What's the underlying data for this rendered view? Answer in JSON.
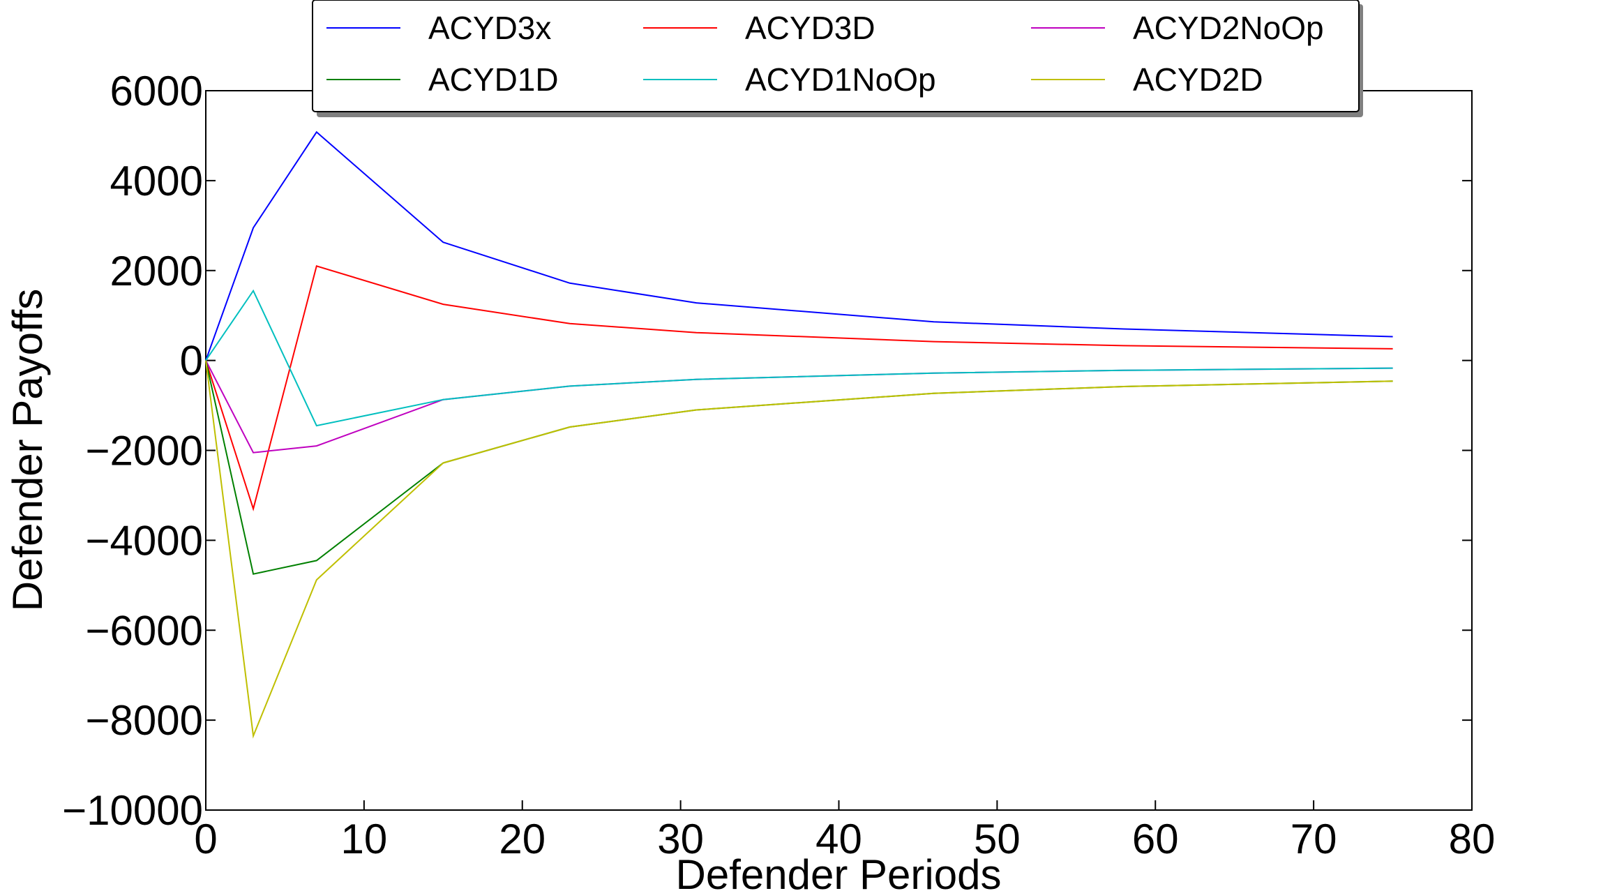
{
  "chart_data": {
    "type": "line",
    "title": "",
    "xlabel": "Defender Periods",
    "ylabel": "Defender Payoffs",
    "xlim": [
      0,
      80
    ],
    "ylim": [
      -10000,
      6000
    ],
    "xticks": [
      0,
      10,
      20,
      30,
      40,
      50,
      60,
      70,
      80
    ],
    "xtick_labels": [
      "0",
      "10",
      "20",
      "30",
      "40",
      "50",
      "60",
      "70",
      "80"
    ],
    "yticks": [
      6000,
      4000,
      2000,
      0,
      -2000,
      -4000,
      -6000,
      -8000,
      -10000
    ],
    "ytick_labels": [
      "6000",
      "4000",
      "2000",
      "0",
      "−2000",
      "−4000",
      "−6000",
      "−8000",
      "−10000"
    ],
    "grid": false,
    "legend_position": "top-center",
    "x": [
      0,
      3,
      7,
      15,
      23,
      31,
      46,
      58,
      75
    ],
    "series": [
      {
        "name": "ACYD3x",
        "color": "#0000ff",
        "values": [
          0,
          2950,
          5080,
          2630,
          1720,
          1280,
          860,
          700,
          530
        ]
      },
      {
        "name": "ACYD3D",
        "color": "#ff0000",
        "values": [
          0,
          -3300,
          2100,
          1250,
          820,
          620,
          420,
          330,
          260
        ]
      },
      {
        "name": "ACYD2NoOp",
        "color": "#bf00bf",
        "values": [
          0,
          -2050,
          -1900,
          -870,
          -570,
          -420,
          -280,
          -220,
          -170
        ]
      },
      {
        "name": "ACYD1D",
        "color": "#008000",
        "values": [
          0,
          -4750,
          -4450,
          -2280,
          -1480,
          -1100,
          -730,
          -580,
          -460
        ]
      },
      {
        "name": "ACYD1NoOp",
        "color": "#00bfbf",
        "values": [
          0,
          1550,
          -1450,
          -870,
          -570,
          -420,
          -280,
          -220,
          -170
        ]
      },
      {
        "name": "ACYD2D",
        "color": "#bfbf00",
        "values": [
          0,
          -8350,
          -4880,
          -2280,
          -1480,
          -1100,
          -730,
          -580,
          -460
        ]
      }
    ],
    "legend_order": [
      "ACYD3x",
      "ACYD3D",
      "ACYD2NoOp",
      "ACYD1D",
      "ACYD1NoOp",
      "ACYD2D"
    ]
  }
}
